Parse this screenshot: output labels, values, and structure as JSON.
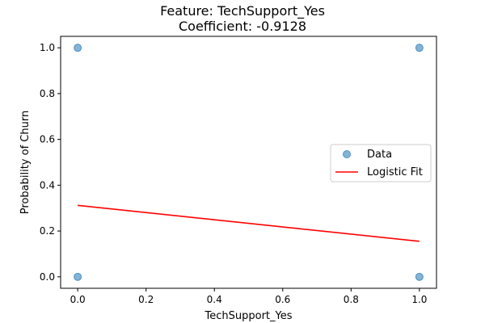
{
  "chart_data": {
    "type": "scatter",
    "title": "Feature: TechSupport_Yes",
    "subtitle": "Coefficient: -0.9128",
    "xlabel": "TechSupport_Yes",
    "ylabel": "Probability of Churn",
    "xlim": [
      -0.05,
      1.05
    ],
    "ylim": [
      -0.05,
      1.05
    ],
    "xticks": [
      0.0,
      0.2,
      0.4,
      0.6,
      0.8,
      1.0
    ],
    "xtick_labels": [
      "0.0",
      "0.2",
      "0.4",
      "0.6",
      "0.8",
      "1.0"
    ],
    "yticks": [
      0.0,
      0.2,
      0.4,
      0.6,
      0.8,
      1.0
    ],
    "ytick_labels": [
      "0.0",
      "0.2",
      "0.4",
      "0.6",
      "0.8",
      "1.0"
    ],
    "grid": false,
    "legend_position": "center-right",
    "series": [
      {
        "name": "Data",
        "kind": "scatter",
        "color": "#1f77b4",
        "points": [
          [
            0,
            0
          ],
          [
            0,
            1
          ],
          [
            1,
            0
          ],
          [
            1,
            1
          ]
        ]
      },
      {
        "name": "Logistic Fit",
        "kind": "line",
        "color": "#ff0000",
        "x": [
          0,
          1
        ],
        "y": [
          0.312,
          0.155
        ]
      }
    ]
  }
}
